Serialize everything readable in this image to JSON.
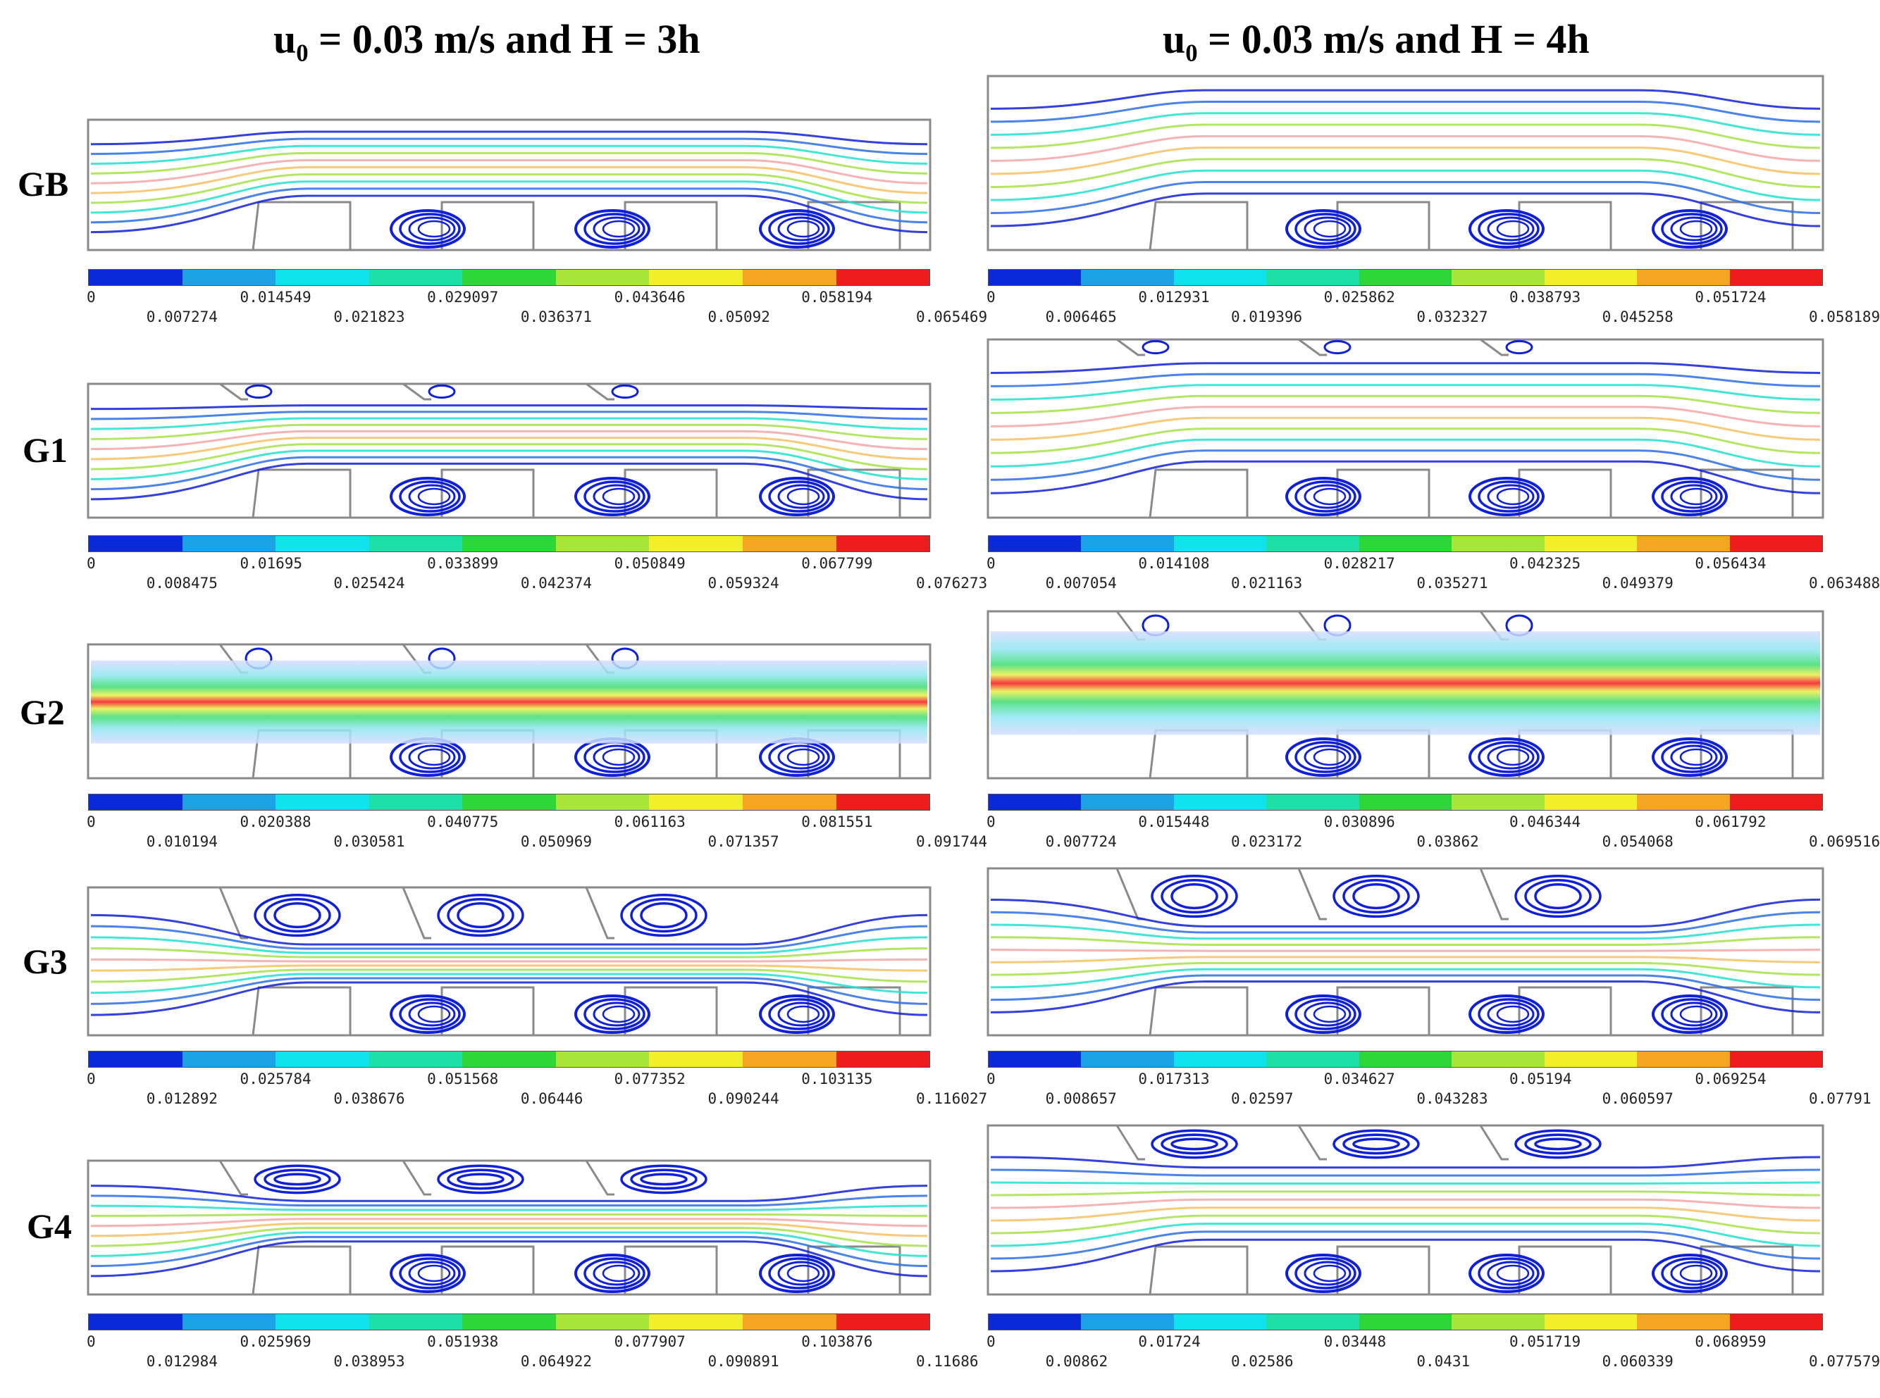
{
  "titles": {
    "left": "u₀ = 0.03 m/s  and H = 3h",
    "right": "u₀ = 0.03 m/s  and H = 4h"
  },
  "row_labels": [
    "GB",
    "G1",
    "G2",
    "G3",
    "G4"
  ],
  "colorbar_colors": [
    "#0a2ad8",
    "#1ca3e6",
    "#10e3ee",
    "#1fdfa8",
    "#2fd63a",
    "#a8e63a",
    "#f2ef2a",
    "#f5a723",
    "#ee1c1c"
  ],
  "scales": {
    "GB_left": {
      "top": [
        "0",
        "0.014549",
        "0.029097",
        "0.043646",
        "0.058194"
      ],
      "bottom": [
        "0.007274",
        "0.021823",
        "0.036371",
        "0.05092",
        "0.065469"
      ]
    },
    "GB_right": {
      "top": [
        "0",
        "0.012931",
        "0.025862",
        "0.038793",
        "0.051724"
      ],
      "bottom": [
        "0.006465",
        "0.019396",
        "0.032327",
        "0.045258",
        "0.058189"
      ]
    },
    "G1_left": {
      "top": [
        "0",
        "0.01695",
        "0.033899",
        "0.050849",
        "0.067799"
      ],
      "bottom": [
        "0.008475",
        "0.025424",
        "0.042374",
        "0.059324",
        "0.076273"
      ]
    },
    "G1_right": {
      "top": [
        "0",
        "0.014108",
        "0.028217",
        "0.042325",
        "0.056434"
      ],
      "bottom": [
        "0.007054",
        "0.021163",
        "0.035271",
        "0.049379",
        "0.063488"
      ]
    },
    "G2_left": {
      "top": [
        "0",
        "0.020388",
        "0.040775",
        "0.061163",
        "0.081551"
      ],
      "bottom": [
        "0.010194",
        "0.030581",
        "0.050969",
        "0.071357",
        "0.091744"
      ]
    },
    "G2_right": {
      "top": [
        "0",
        "0.015448",
        "0.030896",
        "0.046344",
        "0.061792"
      ],
      "bottom": [
        "0.007724",
        "0.023172",
        "0.03862",
        "0.054068",
        "0.069516"
      ]
    },
    "G3_left": {
      "top": [
        "0",
        "0.025784",
        "0.051568",
        "0.077352",
        "0.103135"
      ],
      "bottom": [
        "0.012892",
        "0.038676",
        "0.06446",
        "0.090244",
        "0.116027"
      ]
    },
    "G3_right": {
      "top": [
        "0",
        "0.017313",
        "0.034627",
        "0.05194",
        "0.069254"
      ],
      "bottom": [
        "0.008657",
        "0.02597",
        "0.043283",
        "0.060597",
        "0.07791"
      ]
    },
    "G4_left": {
      "top": [
        "0",
        "0.025969",
        "0.051938",
        "0.077907",
        "0.103876"
      ],
      "bottom": [
        "0.012984",
        "0.038953",
        "0.064922",
        "0.090891",
        "0.11686"
      ]
    },
    "G4_right": {
      "top": [
        "0",
        "0.01724",
        "0.03448",
        "0.051719",
        "0.068959"
      ],
      "bottom": [
        "0.00862",
        "0.02586",
        "0.0431",
        "0.060339",
        "0.077579"
      ]
    }
  }
}
